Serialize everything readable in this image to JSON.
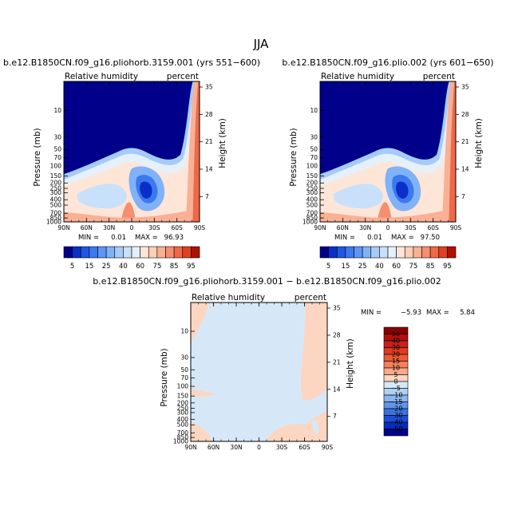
{
  "figure": {
    "title": "JJA"
  },
  "chart_data": [
    {
      "type": "heatmap",
      "title": "b.e12.B1850CN.f09_g16.pliohorb.3159.001 (yrs 551−600)",
      "variable": "Relative humidity",
      "units": "percent",
      "xlabel": "",
      "ylabel": "Pressure (mb)",
      "ylabel_right": "Height (km)",
      "x_ticks": [
        "90N",
        "60N",
        "30N",
        "0",
        "30S",
        "60S",
        "90S"
      ],
      "y_ticks": [
        "10",
        "30",
        "50",
        "70",
        "100",
        "150",
        "200",
        "250",
        "300",
        "400",
        "500",
        "700",
        "850",
        "1000"
      ],
      "y_ticks_right": [
        "35",
        "28",
        "21",
        "14",
        "7"
      ],
      "min_label": "MIN =",
      "min": "0.01",
      "max_label": "MAX =",
      "max": "96.93",
      "colorbar": {
        "orientation": "horizontal",
        "labels": [
          "5",
          "15",
          "25",
          "40",
          "60",
          "75",
          "85",
          "95"
        ],
        "levels": [
          5,
          10,
          15,
          20,
          25,
          30,
          40,
          50,
          60,
          70,
          75,
          80,
          85,
          90,
          95
        ]
      },
      "colors": [
        "#00008b",
        "#0a2fc6",
        "#1e56e6",
        "#3c78f0",
        "#5e96f5",
        "#80b2f7",
        "#a5cbf8",
        "#c8e0fa",
        "#e6f0fb",
        "#fde6d8",
        "#fccfb7",
        "#f9b095",
        "#f68e70",
        "#f06848",
        "#e04020",
        "#b01000"
      ]
    },
    {
      "type": "heatmap",
      "title": "b.e12.B1850CN.f09_g16.plio.002 (yrs 601−650)",
      "variable": "Relative humidity",
      "units": "percent",
      "xlabel": "",
      "ylabel": "Pressure (mb)",
      "ylabel_right": "Height (km)",
      "x_ticks": [
        "90N",
        "60N",
        "30N",
        "0",
        "30S",
        "60S",
        "90S"
      ],
      "y_ticks": [
        "10",
        "30",
        "50",
        "70",
        "100",
        "150",
        "200",
        "250",
        "300",
        "400",
        "500",
        "700",
        "850",
        "1000"
      ],
      "y_ticks_right": [
        "35",
        "28",
        "21",
        "14",
        "7"
      ],
      "min_label": "MIN =",
      "min": "0.01",
      "max_label": "MAX =",
      "max": "97.50",
      "colorbar": {
        "orientation": "horizontal",
        "labels": [
          "5",
          "15",
          "25",
          "40",
          "60",
          "75",
          "85",
          "95"
        ],
        "levels": [
          5,
          10,
          15,
          20,
          25,
          30,
          40,
          50,
          60,
          70,
          75,
          80,
          85,
          90,
          95
        ]
      },
      "colors": [
        "#00008b",
        "#0a2fc6",
        "#1e56e6",
        "#3c78f0",
        "#5e96f5",
        "#80b2f7",
        "#a5cbf8",
        "#c8e0fa",
        "#e6f0fb",
        "#fde6d8",
        "#fccfb7",
        "#f9b095",
        "#f68e70",
        "#f06848",
        "#e04020",
        "#b01000"
      ]
    },
    {
      "type": "heatmap",
      "title": "b.e12.B1850CN.f09_g16.pliohorb.3159.001 − b.e12.B1850CN.f09_g16.plio.002",
      "variable": "Relative humidity",
      "units": "percent",
      "xlabel": "",
      "ylabel": "Pressure (mb)",
      "ylabel_right": "Height (km)",
      "x_ticks": [
        "90N",
        "60N",
        "30N",
        "0",
        "30S",
        "60S",
        "90S"
      ],
      "y_ticks": [
        "10",
        "30",
        "50",
        "70",
        "100",
        "150",
        "200",
        "250",
        "300",
        "400",
        "500",
        "700",
        "850",
        "1000"
      ],
      "y_ticks_right": [
        "35",
        "28",
        "21",
        "14",
        "7"
      ],
      "min_label": "MIN =",
      "min": "−5.93",
      "max_label": "MAX =",
      "max": "5.84",
      "colorbar": {
        "orientation": "vertical",
        "labels": [
          "50",
          "40",
          "30",
          "20",
          "15",
          "10",
          "5",
          "0",
          "−5",
          "−10",
          "−15",
          "−20",
          "−30",
          "−40",
          "−50"
        ],
        "levels": [
          50,
          40,
          30,
          20,
          15,
          10,
          5,
          0,
          -5,
          -10,
          -15,
          -20,
          -30,
          -40,
          -50
        ]
      },
      "colors": [
        "#8b0000",
        "#b01010",
        "#c82020",
        "#dd3b22",
        "#eb5a34",
        "#f3805a",
        "#f8ab8a",
        "#fcd6c0",
        "#d6e8f8",
        "#b2d0f3",
        "#8cb4ee",
        "#6294e8",
        "#3a72e0",
        "#1c4fd4",
        "#0a2cba",
        "#00008b"
      ]
    }
  ]
}
